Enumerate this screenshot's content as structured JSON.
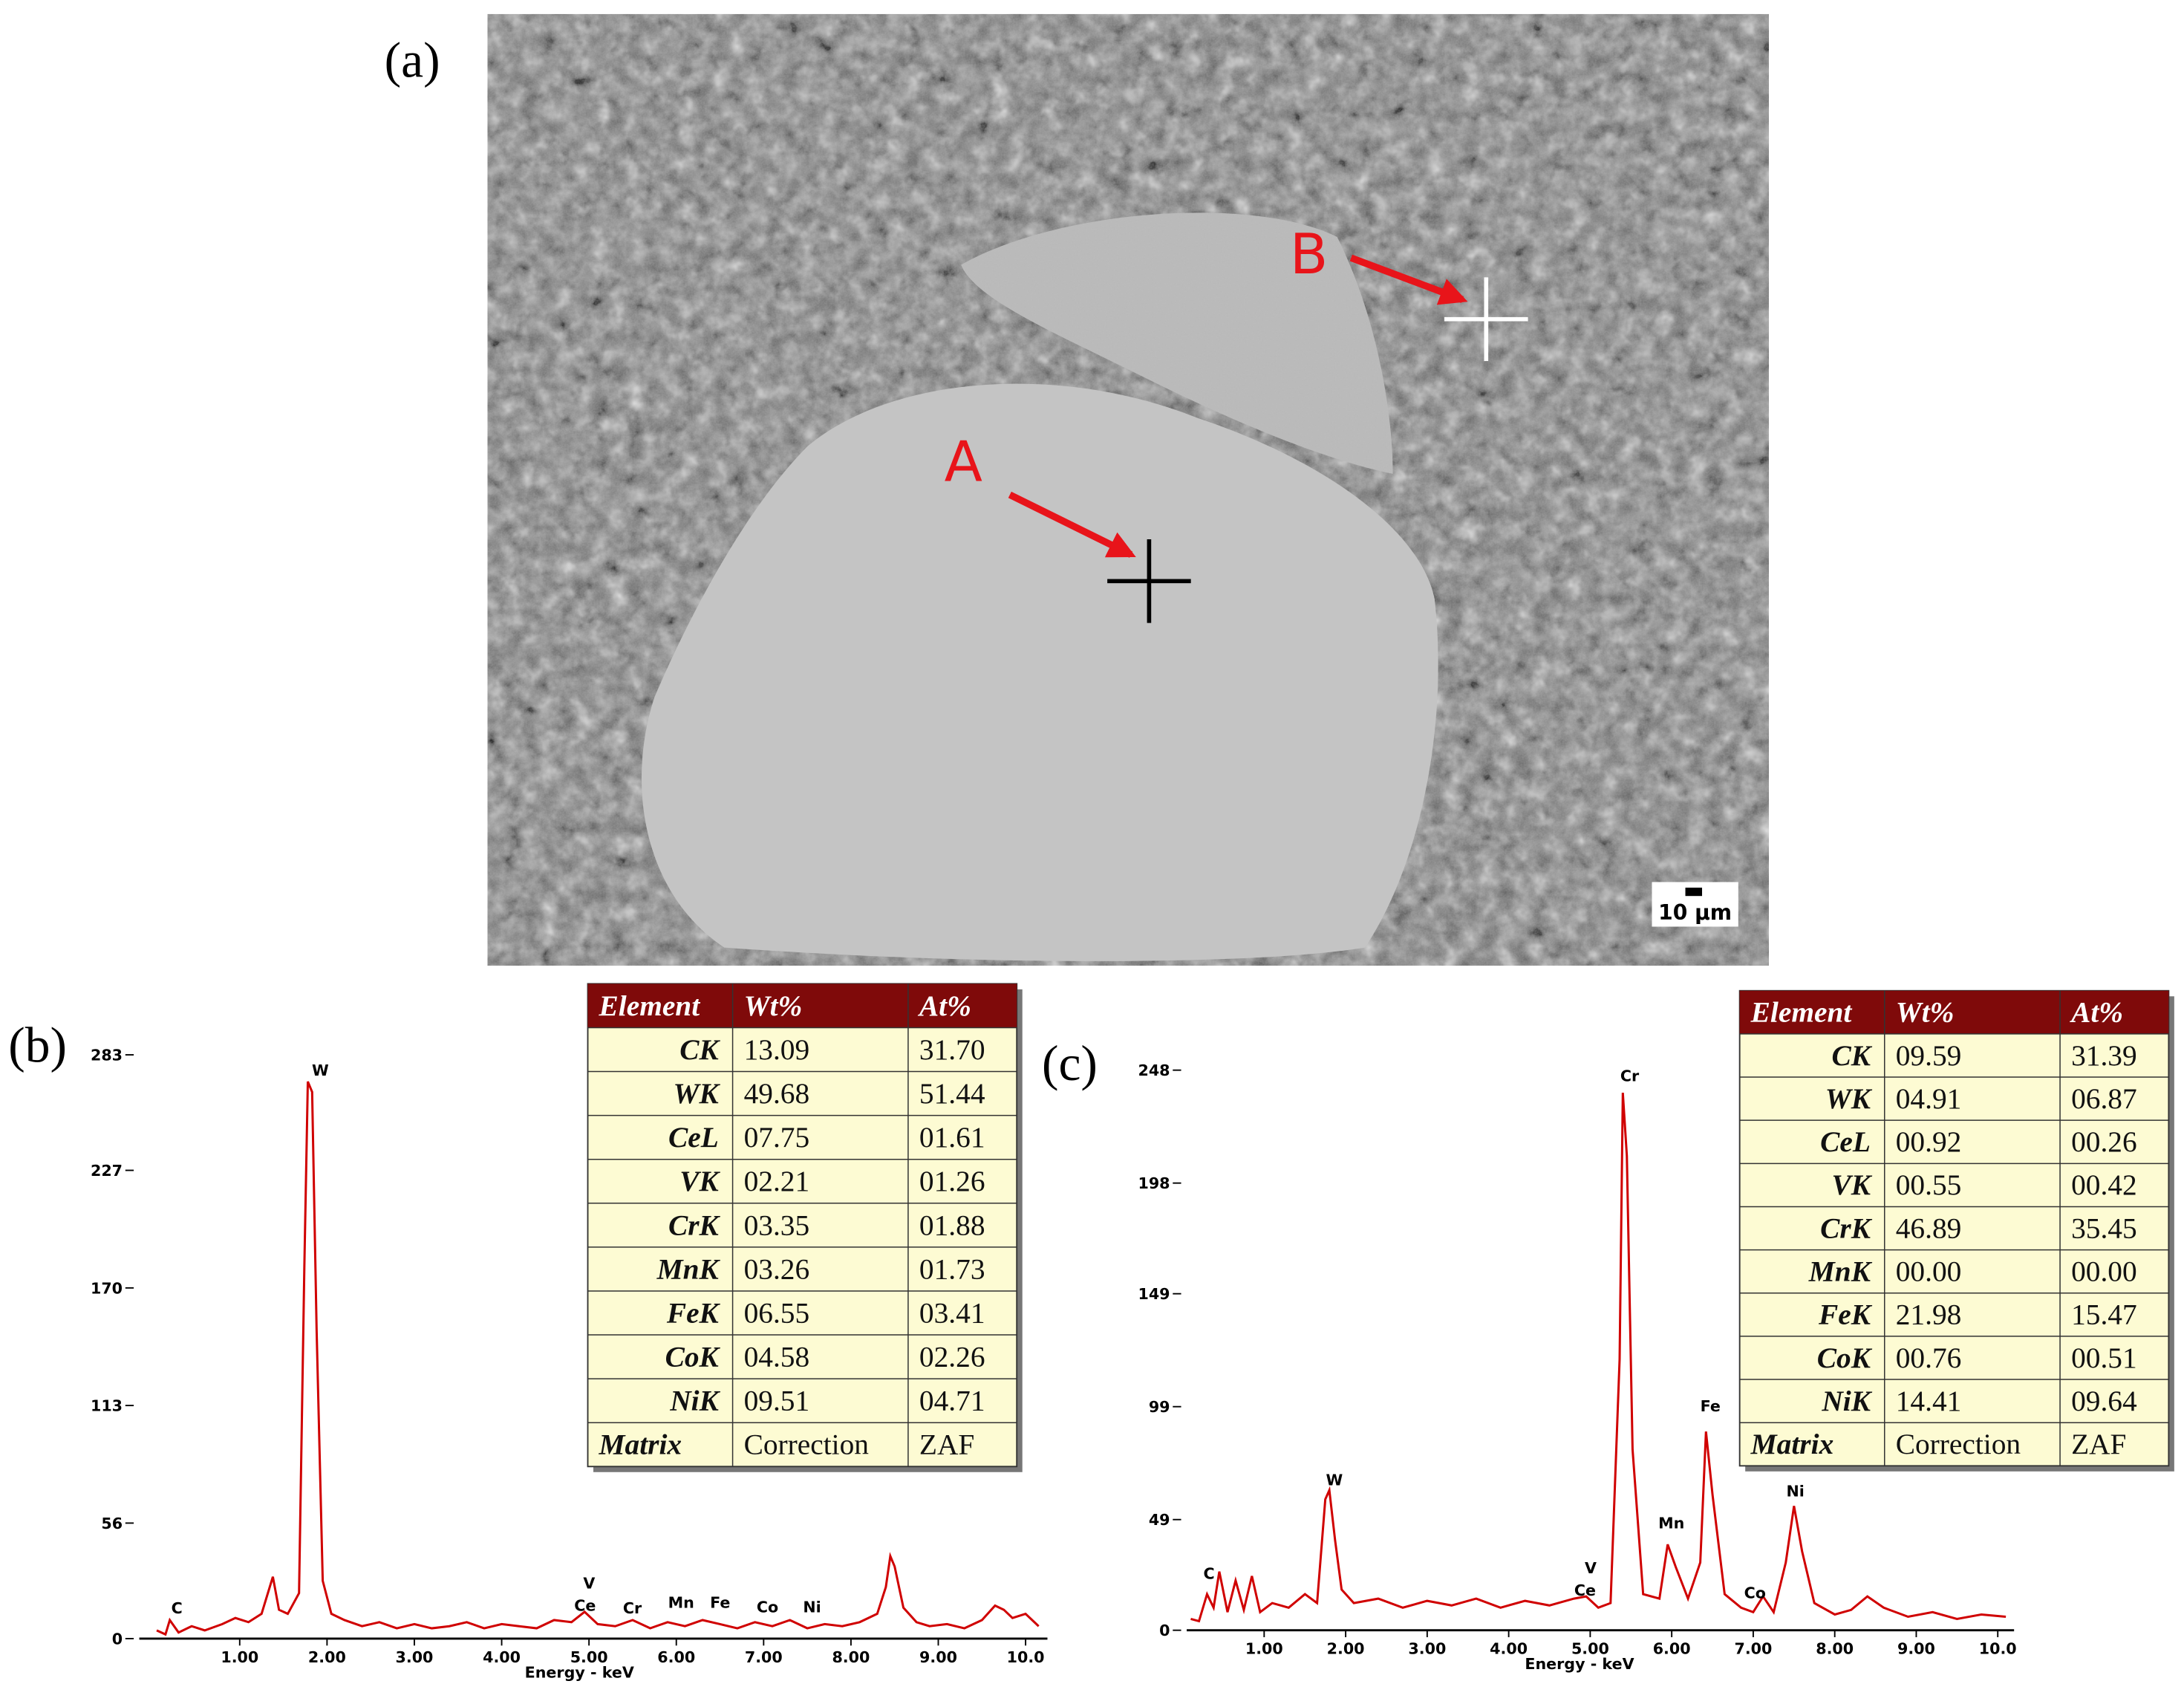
{
  "panel_labels": [
    "(a)",
    "(b)",
    "(c)"
  ],
  "image": {
    "point_labels": [
      "A",
      "B"
    ],
    "scale_bar": "10 µm"
  },
  "chart_data": [
    {
      "type": "line",
      "color": "#d00000",
      "xlabel": "Energy - keV",
      "xlim": [
        -0.15,
        10.25
      ],
      "ylim": [
        0,
        283
      ],
      "xticks": [
        {
          "value": 1,
          "label": "1.00"
        },
        {
          "value": 2,
          "label": "2.00"
        },
        {
          "value": 3,
          "label": "3.00"
        },
        {
          "value": 4,
          "label": "4.00"
        },
        {
          "value": 5,
          "label": "5.00"
        },
        {
          "value": 6,
          "label": "6.00"
        },
        {
          "value": 7,
          "label": "7.00"
        },
        {
          "value": 8,
          "label": "8.00"
        },
        {
          "value": 9,
          "label": "9.00"
        },
        {
          "value": 10,
          "label": "10.0"
        }
      ],
      "yticks": [
        0,
        56,
        113,
        170,
        227,
        283
      ],
      "annotations": [
        "C",
        "W",
        "V",
        "Ce",
        "Cr",
        "Mn",
        "Fe",
        "Co",
        "Ni"
      ],
      "x": [
        0.05,
        0.15,
        0.2,
        0.3,
        0.45,
        0.6,
        0.8,
        0.95,
        1.1,
        1.25,
        1.38,
        1.45,
        1.55,
        1.68,
        1.74,
        1.78,
        1.83,
        1.88,
        1.95,
        2.05,
        2.2,
        2.4,
        2.6,
        2.8,
        3.0,
        3.2,
        3.4,
        3.6,
        3.8,
        4.0,
        4.2,
        4.4,
        4.6,
        4.8,
        4.95,
        5.1,
        5.3,
        5.5,
        5.7,
        5.9,
        6.1,
        6.3,
        6.5,
        6.7,
        6.9,
        7.1,
        7.3,
        7.5,
        7.7,
        7.9,
        8.1,
        8.3,
        8.4,
        8.45,
        8.5,
        8.6,
        8.75,
        8.9,
        9.1,
        9.3,
        9.5,
        9.65,
        9.75,
        9.85,
        10.0,
        10.15
      ],
      "values": [
        4,
        2,
        9,
        3,
        6,
        4,
        7,
        10,
        8,
        12,
        30,
        14,
        12,
        22,
        180,
        270,
        265,
        150,
        28,
        12,
        9,
        6,
        8,
        5,
        7,
        5,
        6,
        8,
        5,
        7,
        6,
        5,
        9,
        8,
        13,
        7,
        6,
        9,
        5,
        8,
        6,
        9,
        7,
        5,
        8,
        6,
        9,
        5,
        7,
        6,
        8,
        12,
        25,
        40,
        35,
        15,
        8,
        6,
        7,
        5,
        9,
        16,
        14,
        10,
        12,
        6
      ]
    },
    {
      "type": "line",
      "color": "#d00000",
      "xlabel": "Energy - keV",
      "xlim": [
        0.05,
        10.2
      ],
      "ylim": [
        0,
        248
      ],
      "xticks": [
        {
          "value": 1,
          "label": "1.00"
        },
        {
          "value": 2,
          "label": "2.00"
        },
        {
          "value": 3,
          "label": "3.00"
        },
        {
          "value": 4,
          "label": "4.00"
        },
        {
          "value": 5,
          "label": "5.00"
        },
        {
          "value": 6,
          "label": "6.00"
        },
        {
          "value": 7,
          "label": "7.00"
        },
        {
          "value": 8,
          "label": "8.00"
        },
        {
          "value": 9,
          "label": "9.00"
        },
        {
          "value": 10,
          "label": "10.0"
        }
      ],
      "yticks": [
        0,
        49,
        99,
        149,
        198,
        248
      ],
      "annotations": [
        "C",
        "W",
        "V",
        "Ce",
        "Cr",
        "Mn",
        "Fe",
        "Co",
        "Ni"
      ],
      "x": [
        0.1,
        0.2,
        0.3,
        0.38,
        0.45,
        0.55,
        0.65,
        0.75,
        0.85,
        0.95,
        1.1,
        1.3,
        1.5,
        1.65,
        1.75,
        1.8,
        1.87,
        1.95,
        2.1,
        2.4,
        2.7,
        3.0,
        3.3,
        3.6,
        3.9,
        4.2,
        4.5,
        4.8,
        4.95,
        5.1,
        5.25,
        5.36,
        5.4,
        5.45,
        5.52,
        5.65,
        5.85,
        5.95,
        6.05,
        6.2,
        6.35,
        6.42,
        6.5,
        6.65,
        6.85,
        7.0,
        7.12,
        7.25,
        7.4,
        7.5,
        7.6,
        7.75,
        8.0,
        8.2,
        8.4,
        8.6,
        8.9,
        9.2,
        9.5,
        9.8,
        10.1
      ],
      "values": [
        5,
        4,
        16,
        10,
        26,
        8,
        22,
        9,
        24,
        8,
        12,
        10,
        16,
        12,
        58,
        62,
        40,
        18,
        12,
        14,
        10,
        13,
        11,
        14,
        10,
        13,
        11,
        14,
        15,
        10,
        12,
        120,
        238,
        210,
        80,
        16,
        14,
        38,
        28,
        14,
        30,
        88,
        60,
        16,
        10,
        8,
        15,
        8,
        30,
        55,
        35,
        12,
        7,
        9,
        15,
        10,
        6,
        8,
        5,
        7,
        6
      ]
    }
  ],
  "tables": [
    {
      "header": [
        "Element",
        "Wt%",
        "At%"
      ],
      "rows": [
        [
          "CK",
          "13.09",
          "31.70"
        ],
        [
          "WK",
          "49.68",
          "51.44"
        ],
        [
          "CeL",
          "07.75",
          "01.61"
        ],
        [
          "VK",
          "02.21",
          "01.26"
        ],
        [
          "CrK",
          "03.35",
          "01.88"
        ],
        [
          "MnK",
          "03.26",
          "01.73"
        ],
        [
          "FeK",
          "06.55",
          "03.41"
        ],
        [
          "CoK",
          "04.58",
          "02.26"
        ],
        [
          "NiK",
          "09.51",
          "04.71"
        ],
        [
          "Matrix",
          "Correction",
          "ZAF"
        ]
      ]
    },
    {
      "header": [
        "Element",
        "Wt%",
        "At%"
      ],
      "rows": [
        [
          "CK",
          "09.59",
          "31.39"
        ],
        [
          "WK",
          "04.91",
          "06.87"
        ],
        [
          "CeL",
          "00.92",
          "00.26"
        ],
        [
          "VK",
          "00.55",
          "00.42"
        ],
        [
          "CrK",
          "46.89",
          "35.45"
        ],
        [
          "MnK",
          "00.00",
          "00.00"
        ],
        [
          "FeK",
          "21.98",
          "15.47"
        ],
        [
          "CoK",
          "00.76",
          "00.51"
        ],
        [
          "NiK",
          "14.41",
          "09.64"
        ],
        [
          "Matrix",
          "Correction",
          "ZAF"
        ]
      ]
    }
  ]
}
